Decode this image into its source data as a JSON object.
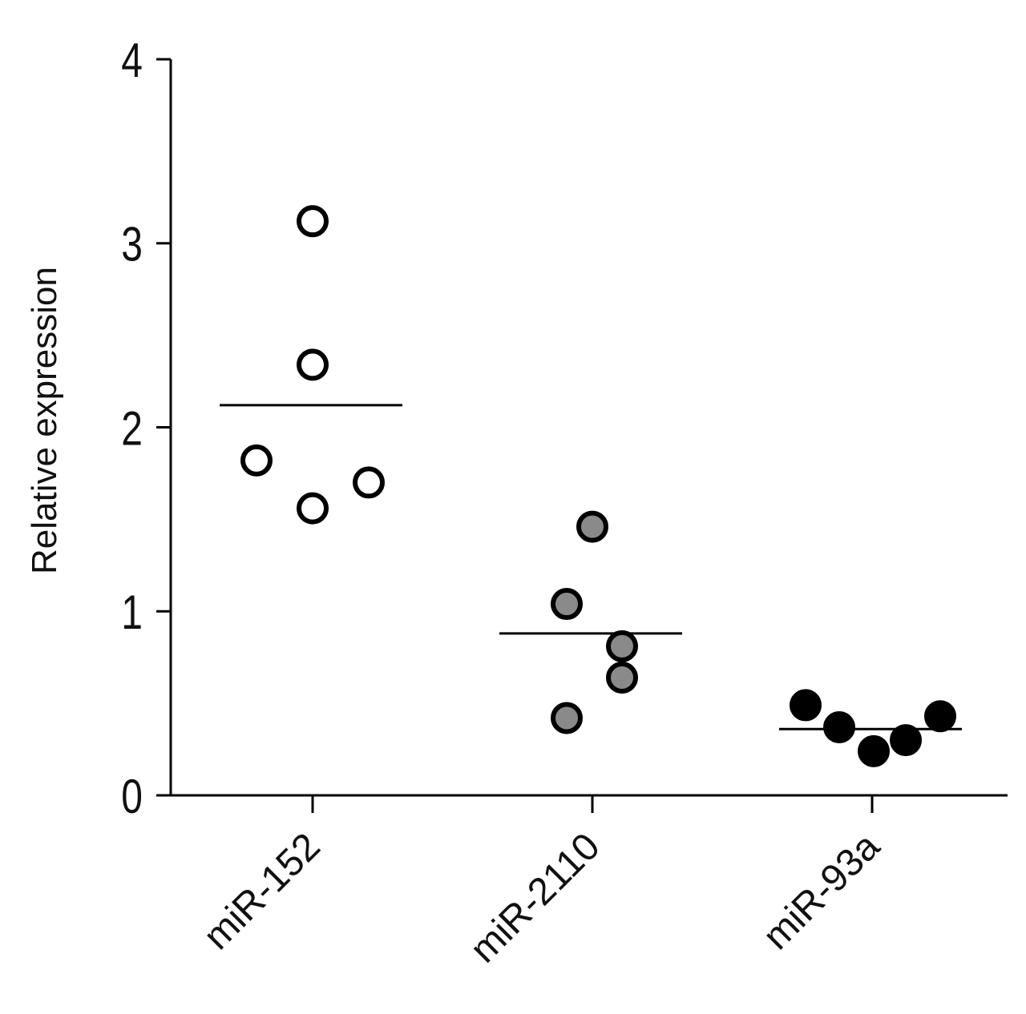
{
  "chart_data": {
    "type": "dot",
    "y_label": "Relative expression",
    "categories": [
      "miR-152",
      "miR-2110",
      "miR-93a"
    ],
    "colors": [
      "#ffffff",
      "#8a8a8a",
      "#000000"
    ],
    "values": [
      [
        3.12,
        2.34,
        1.82,
        1.7,
        1.56
      ],
      [
        1.46,
        1.04,
        0.81,
        0.64,
        0.42
      ],
      [
        0.49,
        0.37,
        0.24,
        0.3,
        0.43
      ]
    ],
    "means": [
      2.12,
      0.88,
      0.36
    ],
    "ylim": [
      0,
      4
    ],
    "yticks": [
      0,
      1,
      2,
      3,
      4
    ]
  }
}
